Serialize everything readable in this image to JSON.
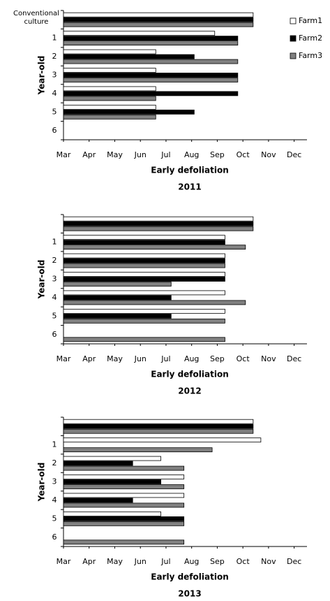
{
  "chart_data": [
    {
      "type": "bar",
      "orientation": "horizontal",
      "title": "2011",
      "xlabel": "Early defoliation",
      "ylabel": "Year-old",
      "categories": [
        "Conventional culture",
        "1",
        "2",
        "3",
        "4",
        "5",
        "6"
      ],
      "series": [
        {
          "name": "Farm1",
          "color": "#ffffff",
          "values": [
            10.4,
            8.9,
            6.6,
            6.6,
            6.6,
            6.6,
            null
          ]
        },
        {
          "name": "Farm2",
          "color": "#000000",
          "values": [
            10.4,
            9.8,
            8.1,
            9.8,
            9.8,
            8.1,
            null
          ]
        },
        {
          "name": "Farm3",
          "color": "#808080",
          "values": [
            10.4,
            9.8,
            9.8,
            9.8,
            6.6,
            6.6,
            null
          ]
        }
      ],
      "xlim": [
        3,
        12.5
      ],
      "xticks": [
        {
          "value": 3,
          "label": "Mar"
        },
        {
          "value": 4,
          "label": "Apr"
        },
        {
          "value": 5,
          "label": "May"
        },
        {
          "value": 6,
          "label": "Jun"
        },
        {
          "value": 7,
          "label": "Jul"
        },
        {
          "value": 8,
          "label": "Aug"
        },
        {
          "value": 9,
          "label": "Sep"
        },
        {
          "value": 10,
          "label": "Oct"
        },
        {
          "value": 11,
          "label": "Nov"
        },
        {
          "value": 12,
          "label": "Dec"
        }
      ],
      "legend": "upper right"
    },
    {
      "type": "bar",
      "orientation": "horizontal",
      "title": "2012",
      "xlabel": "Early defoliation",
      "ylabel": "Year-old",
      "categories": [
        null,
        "1",
        "2",
        "3",
        "4",
        "5",
        "6"
      ],
      "series": [
        {
          "name": "Farm1",
          "color": "#ffffff",
          "values": [
            10.4,
            9.3,
            9.3,
            9.3,
            9.3,
            9.3,
            null
          ]
        },
        {
          "name": "Farm2",
          "color": "#000000",
          "values": [
            10.4,
            9.3,
            9.3,
            9.3,
            7.2,
            7.2,
            null
          ]
        },
        {
          "name": "Farm3",
          "color": "#808080",
          "values": [
            10.4,
            10.1,
            9.3,
            7.2,
            10.1,
            9.3,
            9.3
          ]
        }
      ],
      "xlim": [
        3,
        12.5
      ],
      "xticks": [
        {
          "value": 3,
          "label": "Mar"
        },
        {
          "value": 4,
          "label": "Apr"
        },
        {
          "value": 5,
          "label": "May"
        },
        {
          "value": 6,
          "label": "Jun"
        },
        {
          "value": 7,
          "label": "Jul"
        },
        {
          "value": 8,
          "label": "Aug"
        },
        {
          "value": 9,
          "label": "Sep"
        },
        {
          "value": 10,
          "label": "Oct"
        },
        {
          "value": 11,
          "label": "Nov"
        },
        {
          "value": 12,
          "label": "Dec"
        }
      ]
    },
    {
      "type": "bar",
      "orientation": "horizontal",
      "title": "2013",
      "xlabel": "Early defoliation",
      "ylabel": "Year-old",
      "categories": [
        null,
        "1",
        "2",
        "3",
        "4",
        "5",
        "6"
      ],
      "series": [
        {
          "name": "Farm1",
          "color": "#ffffff",
          "values": [
            10.4,
            10.7,
            6.8,
            7.7,
            7.7,
            6.8,
            null
          ]
        },
        {
          "name": "Farm2",
          "color": "#000000",
          "values": [
            10.4,
            null,
            5.7,
            6.8,
            5.7,
            7.7,
            null
          ]
        },
        {
          "name": "Farm3",
          "color": "#808080",
          "values": [
            10.4,
            8.8,
            7.7,
            7.7,
            7.7,
            7.7,
            7.7
          ]
        }
      ],
      "xlim": [
        3,
        12.5
      ],
      "xticks": [
        {
          "value": 3,
          "label": "Mar"
        },
        {
          "value": 4,
          "label": "Apr"
        },
        {
          "value": 5,
          "label": "May"
        },
        {
          "value": 6,
          "label": "Jun"
        },
        {
          "value": 7,
          "label": "Jul"
        },
        {
          "value": 8,
          "label": "Aug"
        },
        {
          "value": 9,
          "label": "Sep"
        },
        {
          "value": 10,
          "label": "Oct"
        },
        {
          "value": 11,
          "label": "Nov"
        },
        {
          "value": 12,
          "label": "Dec"
        }
      ]
    }
  ]
}
